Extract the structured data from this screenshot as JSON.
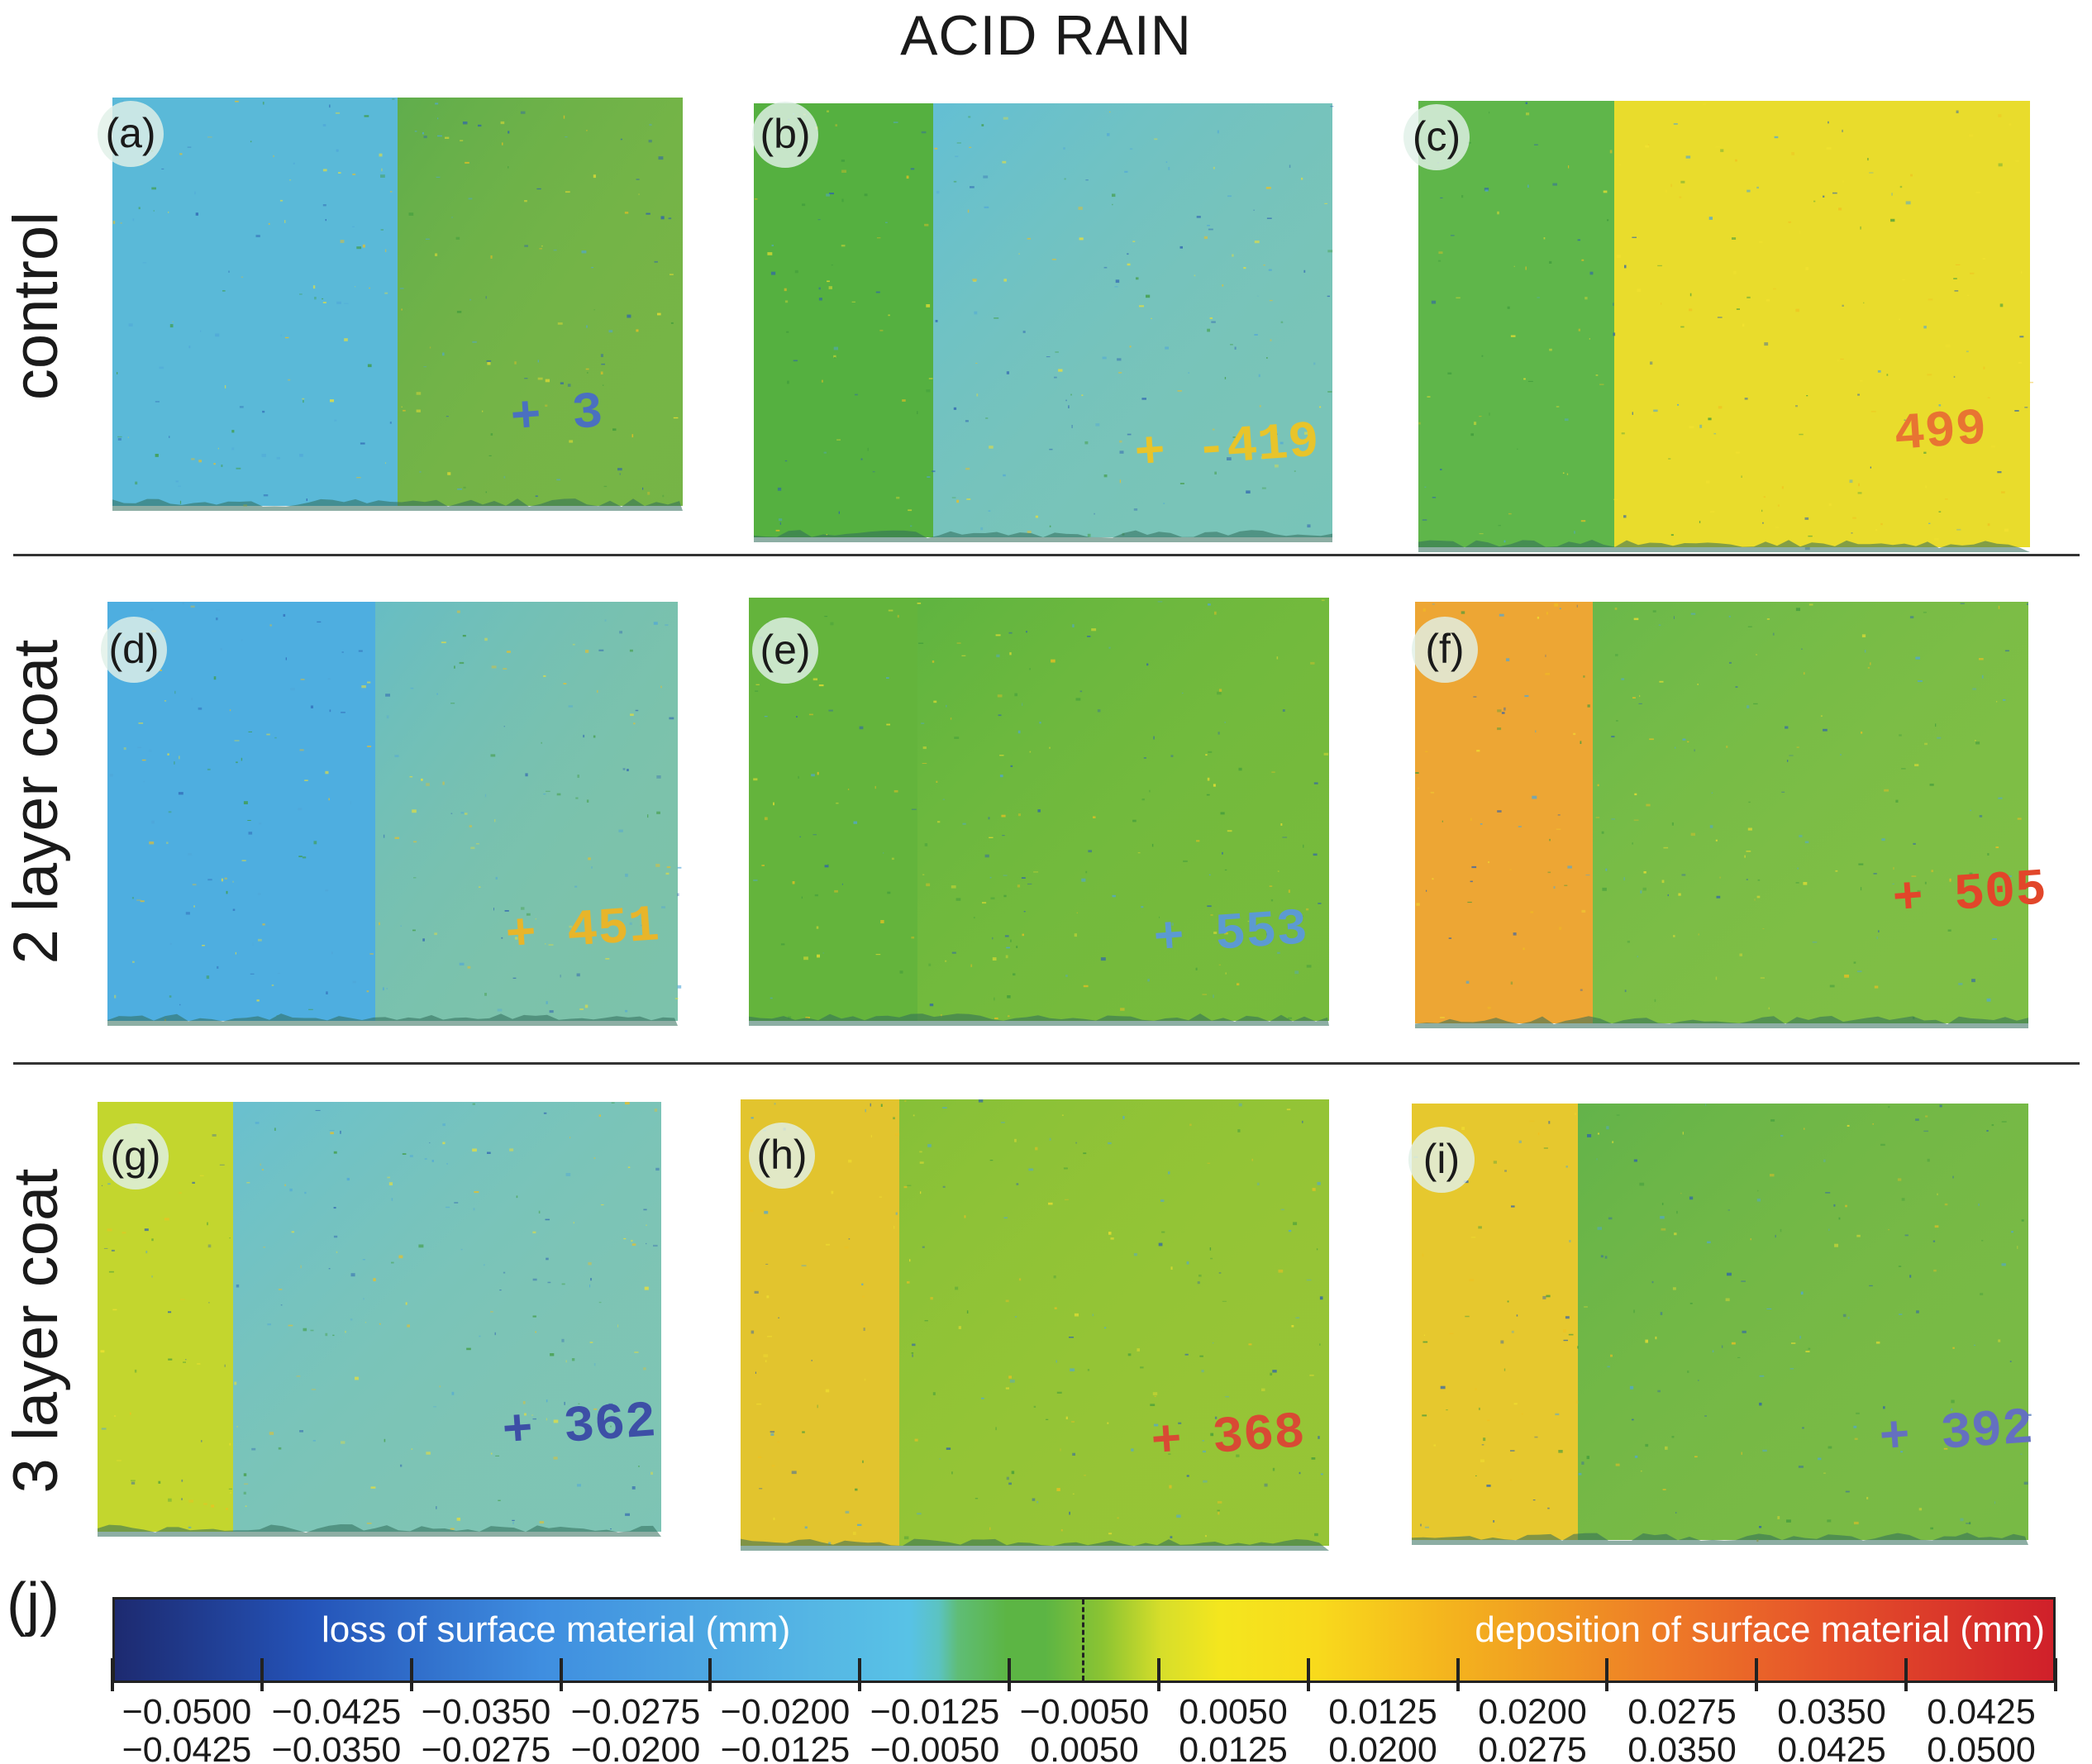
{
  "figure": {
    "title": "ACID RAIN",
    "rows": [
      {
        "label": "control"
      },
      {
        "label": "2 layer coat"
      },
      {
        "label": "3 layer coat"
      }
    ],
    "panels": [
      {
        "label": "(a)",
        "left_color": "#5ab9d8",
        "right_color": "#60ad4c",
        "numeral": "+ 3",
        "numeral_color": "#4a70c0"
      },
      {
        "label": "(b)",
        "left_color": "#55b040",
        "right_color": "#63bfd4",
        "numeral": "+ -419",
        "numeral_color": "#e8c42a"
      },
      {
        "label": "(c)",
        "left_color": "#5fb64a",
        "right_color": "#e9dc2c",
        "numeral": "499",
        "numeral_color": "#e87432"
      },
      {
        "label": "(d)",
        "left_color": "#4eaee0",
        "right_color": "#67bdc4",
        "numeral": "+ 451",
        "numeral_color": "#e8b52a"
      },
      {
        "label": "(e)",
        "left_color": "#64b43c",
        "right_color": "#5fb440",
        "numeral": "+ 553",
        "numeral_color": "#5c9ad2"
      },
      {
        "label": "(f)",
        "left_color": "#eda634",
        "right_color": "#6ab84a",
        "numeral": "+ 505",
        "numeral_color": "#e2462a"
      },
      {
        "label": "(g)",
        "left_color": "#c3d62e",
        "right_color": "#69c0cf",
        "numeral": "+ 362",
        "numeral_color": "#3d4fa6"
      },
      {
        "label": "(h)",
        "left_color": "#e2c42e",
        "right_color": "#86c038",
        "numeral": "+ 368",
        "numeral_color": "#d84a34"
      },
      {
        "label": "(i)",
        "left_color": "#e6c82e",
        "right_color": "#63b34a",
        "numeral": "+ 392",
        "numeral_color": "#6470c0"
      }
    ],
    "colorbar": {
      "panel_label": "(j)",
      "loss_label": "loss of surface material (mm)",
      "deposition_label": "deposition of surface material (mm)",
      "bins": [
        {
          "upper": "−0.0500",
          "lower": "−0.0425"
        },
        {
          "upper": "−0.0425",
          "lower": "−0.0350"
        },
        {
          "upper": "−0.0350",
          "lower": "−0.0275"
        },
        {
          "upper": "−0.0275",
          "lower": "−0.0200"
        },
        {
          "upper": "−0.0200",
          "lower": "−0.0125"
        },
        {
          "upper": "−0.0125",
          "lower": "−0.0050"
        },
        {
          "upper": "−0.0050",
          "lower": "0.0050"
        },
        {
          "upper": "0.0050",
          "lower": "0.0125"
        },
        {
          "upper": "0.0125",
          "lower": "0.0200"
        },
        {
          "upper": "0.0200",
          "lower": "0.0275"
        },
        {
          "upper": "0.0275",
          "lower": "0.0350"
        },
        {
          "upper": "0.0350",
          "lower": "0.0425"
        },
        {
          "upper": "0.0425",
          "lower": "0.0500"
        }
      ]
    }
  }
}
